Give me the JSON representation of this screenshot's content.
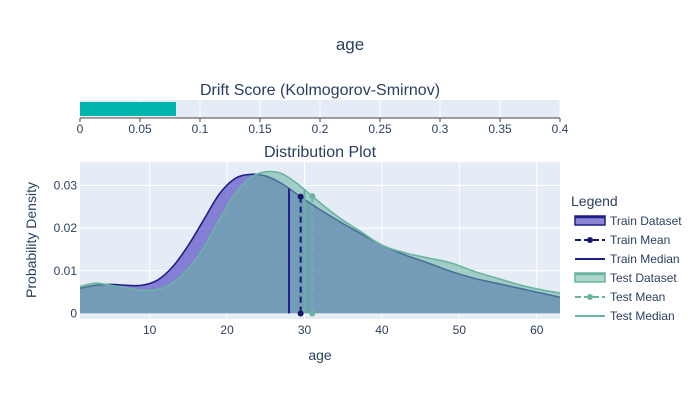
{
  "title": "age",
  "drift": {
    "title": "Drift Score (Kolmogorov-Smirnov)",
    "value": 0.08,
    "xlim": [
      0,
      0.4
    ],
    "ticks": [
      "0",
      "0.05",
      "0.1",
      "0.15",
      "0.2",
      "0.25",
      "0.3",
      "0.35",
      "0.4"
    ],
    "bar_color": "#00b5ad"
  },
  "chart_data": {
    "type": "area",
    "title": "Distribution Plot",
    "xlabel": "age",
    "ylabel": "Probability Density",
    "xlim": [
      1,
      63
    ],
    "ylim": [
      -0.0013,
      0.0355
    ],
    "x_ticks": [
      "10",
      "20",
      "30",
      "40",
      "50",
      "60"
    ],
    "y_ticks": [
      "0",
      "0.01",
      "0.02",
      "0.03"
    ],
    "grid": true,
    "legend_title": "Legend",
    "legend_position": "right",
    "series": [
      {
        "name": "Train Dataset",
        "color": "#1f1f8c",
        "x": [
          1,
          3,
          5,
          7,
          9,
          11,
          13,
          15,
          17,
          19,
          21,
          23,
          25,
          27,
          29,
          31,
          33,
          35,
          37,
          40,
          43,
          46,
          49,
          52,
          55,
          58,
          61,
          63
        ],
        "y": [
          0.0059,
          0.0066,
          0.0068,
          0.0066,
          0.0066,
          0.0078,
          0.011,
          0.016,
          0.022,
          0.028,
          0.0316,
          0.0326,
          0.0322,
          0.0305,
          0.028,
          0.0255,
          0.0232,
          0.021,
          0.019,
          0.016,
          0.0137,
          0.0118,
          0.0098,
          0.0082,
          0.007,
          0.0058,
          0.0046,
          0.0038
        ]
      },
      {
        "name": "Test Dataset",
        "color": "#6ab5a0",
        "x": [
          1,
          3,
          5,
          7,
          9,
          11,
          13,
          15,
          17,
          19,
          21,
          23,
          25,
          27,
          29,
          31,
          33,
          35,
          37,
          40,
          43,
          46,
          49,
          52,
          55,
          58,
          61,
          63
        ],
        "y": [
          0.0063,
          0.0071,
          0.0066,
          0.006,
          0.0054,
          0.0056,
          0.0072,
          0.0105,
          0.0155,
          0.022,
          0.028,
          0.0318,
          0.0332,
          0.0328,
          0.0305,
          0.0275,
          0.0245,
          0.0218,
          0.0195,
          0.016,
          0.0142,
          0.013,
          0.0118,
          0.0098,
          0.0082,
          0.0066,
          0.0054,
          0.0048
        ]
      }
    ],
    "lines": [
      {
        "name": "Train Mean",
        "x": 29.5,
        "color": "#16166e",
        "style": "dash",
        "markers": true
      },
      {
        "name": "Train Median",
        "x": 28,
        "color": "#1f1f8c",
        "style": "solid",
        "markers": false
      },
      {
        "name": "Test Mean",
        "x": 31,
        "color": "#6ab5a0",
        "style": "dash",
        "markers": true
      },
      {
        "name": "Test Median",
        "x": 30,
        "color": "#6ab5a0",
        "style": "solid",
        "markers": false
      }
    ]
  }
}
